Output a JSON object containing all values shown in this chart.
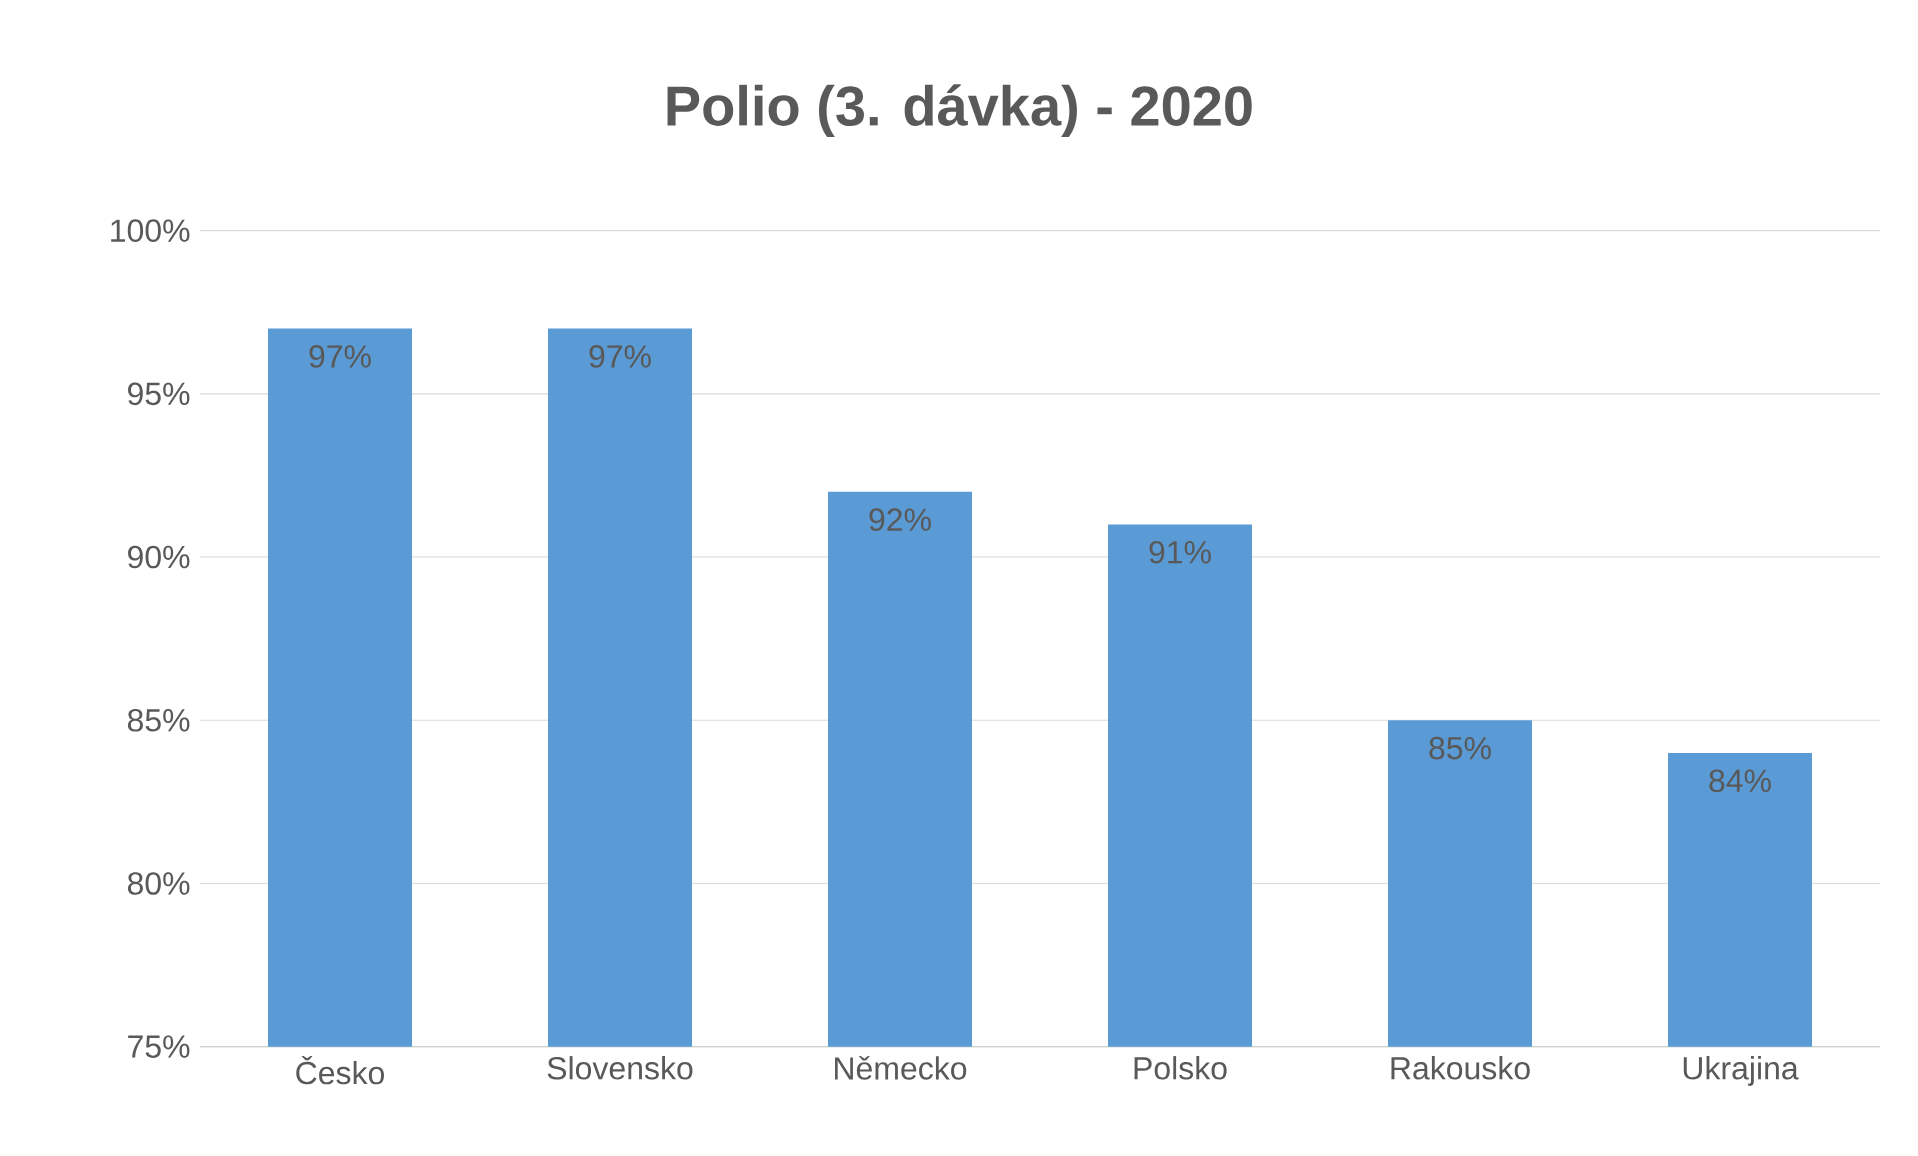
{
  "chart_data": {
    "type": "bar",
    "title": "Polio (3. dávka) - 2020",
    "categories": [
      "Česko",
      "Slovensko",
      "Německo",
      "Polsko",
      "Rakousko",
      "Ukrajina"
    ],
    "values": [
      97,
      97,
      92,
      91,
      85,
      84
    ],
    "value_labels": [
      "97%",
      "97%",
      "92%",
      "91%",
      "85%",
      "84%"
    ],
    "color": "#5b9bd5",
    "ylim": [
      75,
      100
    ],
    "yticks": [
      {
        "value": 75,
        "label": "75%"
      },
      {
        "value": 80,
        "label": "80%"
      },
      {
        "value": 85,
        "label": "85%"
      },
      {
        "value": 90,
        "label": "90%"
      },
      {
        "value": 95,
        "label": "95%"
      },
      {
        "value": 100,
        "label": "100%"
      }
    ],
    "grid": "y"
  }
}
